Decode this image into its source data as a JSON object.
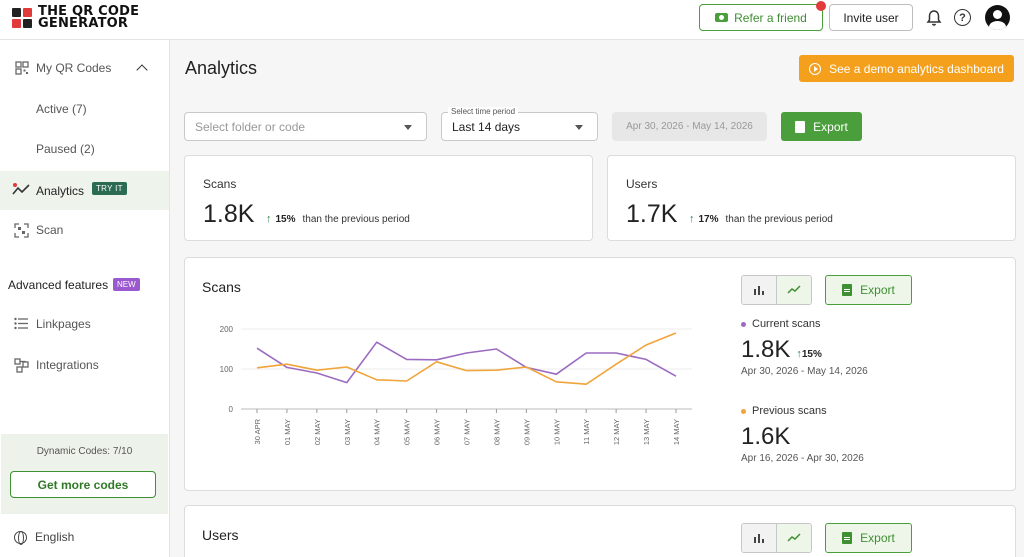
{
  "brand": {
    "line1": "THE QR CODE",
    "line2": "GENERATOR"
  },
  "header": {
    "refer_label": "Refer a friend",
    "invite_label": "Invite user"
  },
  "sidebar": {
    "my_codes": "My QR Codes",
    "active": "Active (7)",
    "paused": "Paused (2)",
    "analytics": "Analytics",
    "try_it": "TRY IT",
    "scan": "Scan",
    "advanced": "Advanced features",
    "new_badge": "NEW",
    "linkpages": "Linkpages",
    "integrations": "Integrations",
    "dynamic_codes": "Dynamic Codes: 7/10",
    "get_more": "Get more codes",
    "language": "English"
  },
  "main": {
    "title": "Analytics",
    "demo_label": "See a demo analytics dashboard",
    "folder_placeholder": "Select folder or code",
    "time_legend": "Select time period",
    "time_value": "Last 14 days",
    "date_range": "Apr 30, 2026 - May 14, 2026",
    "export_label": "Export"
  },
  "summary": {
    "scans": {
      "label": "Scans",
      "value": "1.8K",
      "pct": "15%",
      "suffix": "than the previous period"
    },
    "users": {
      "label": "Users",
      "value": "1.7K",
      "pct": "17%",
      "suffix": "than the previous period"
    }
  },
  "scans_chart": {
    "title": "Scans",
    "export_label": "Export",
    "current": {
      "name": "Current scans",
      "value": "1.8K",
      "pct": "15%",
      "dates": "Apr 30, 2026 - May 14, 2026"
    },
    "previous": {
      "name": "Previous scans",
      "value": "1.6K",
      "dates": "Apr 16, 2026 - Apr 30, 2026"
    }
  },
  "users_section": {
    "title": "Users",
    "export_label": "Export"
  },
  "colors": {
    "current": "#9b6bc0",
    "previous": "#f0a43a",
    "accent": "#4a9e3b",
    "demo": "#f5a01c"
  },
  "chart_data": {
    "type": "line",
    "categories": [
      "30 APR",
      "01 MAY",
      "02 MAY",
      "03 MAY",
      "04 MAY",
      "05 MAY",
      "06 MAY",
      "07 MAY",
      "08 MAY",
      "09 MAY",
      "10 MAY",
      "11 MAY",
      "12 MAY",
      "13 MAY",
      "14 MAY"
    ],
    "series": [
      {
        "name": "Current scans",
        "color": "#9b6bc0",
        "values": [
          152,
          104,
          90,
          66,
          167,
          124,
          123,
          140,
          150,
          104,
          87,
          140,
          140,
          124,
          82
        ]
      },
      {
        "name": "Previous scans",
        "color": "#f0a43a",
        "values": [
          103,
          112,
          97,
          105,
          73,
          70,
          118,
          96,
          97,
          105,
          68,
          62,
          112,
          160,
          190
        ]
      }
    ],
    "yticks": [
      0,
      100,
      200
    ],
    "ylim": [
      0,
      200
    ]
  }
}
